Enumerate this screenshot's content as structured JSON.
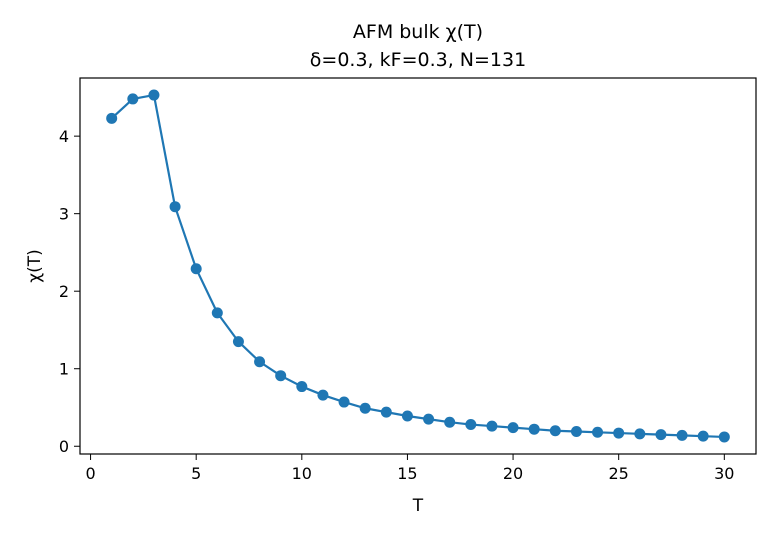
{
  "chart_data": {
    "type": "line",
    "title": "AFM bulk χ(T)",
    "subtitle": "δ=0.3, kF=0.3, N=131",
    "xlabel": "T",
    "ylabel": "χ(T)",
    "xlim": [
      -0.5,
      31.5
    ],
    "ylim": [
      -0.1,
      4.75
    ],
    "xticks": [
      0,
      5,
      10,
      15,
      20,
      25,
      30
    ],
    "yticks": [
      0,
      1,
      2,
      3,
      4
    ],
    "grid": false,
    "legend": "none",
    "color": "#1f77b4",
    "marker": "circle",
    "series": [
      {
        "x": [
          1,
          2,
          3,
          4,
          5,
          6,
          7,
          8,
          9,
          10,
          11,
          12,
          13,
          14,
          15,
          16,
          17,
          18,
          19,
          20,
          21,
          22,
          23,
          24,
          25,
          26,
          27,
          28,
          29,
          30
        ],
        "values": [
          4.23,
          4.48,
          4.53,
          3.09,
          2.29,
          1.72,
          1.35,
          1.09,
          0.91,
          0.77,
          0.66,
          0.57,
          0.49,
          0.44,
          0.39,
          0.35,
          0.31,
          0.28,
          0.26,
          0.24,
          0.22,
          0.2,
          0.19,
          0.18,
          0.17,
          0.16,
          0.15,
          0.14,
          0.13,
          0.12
        ]
      }
    ]
  }
}
